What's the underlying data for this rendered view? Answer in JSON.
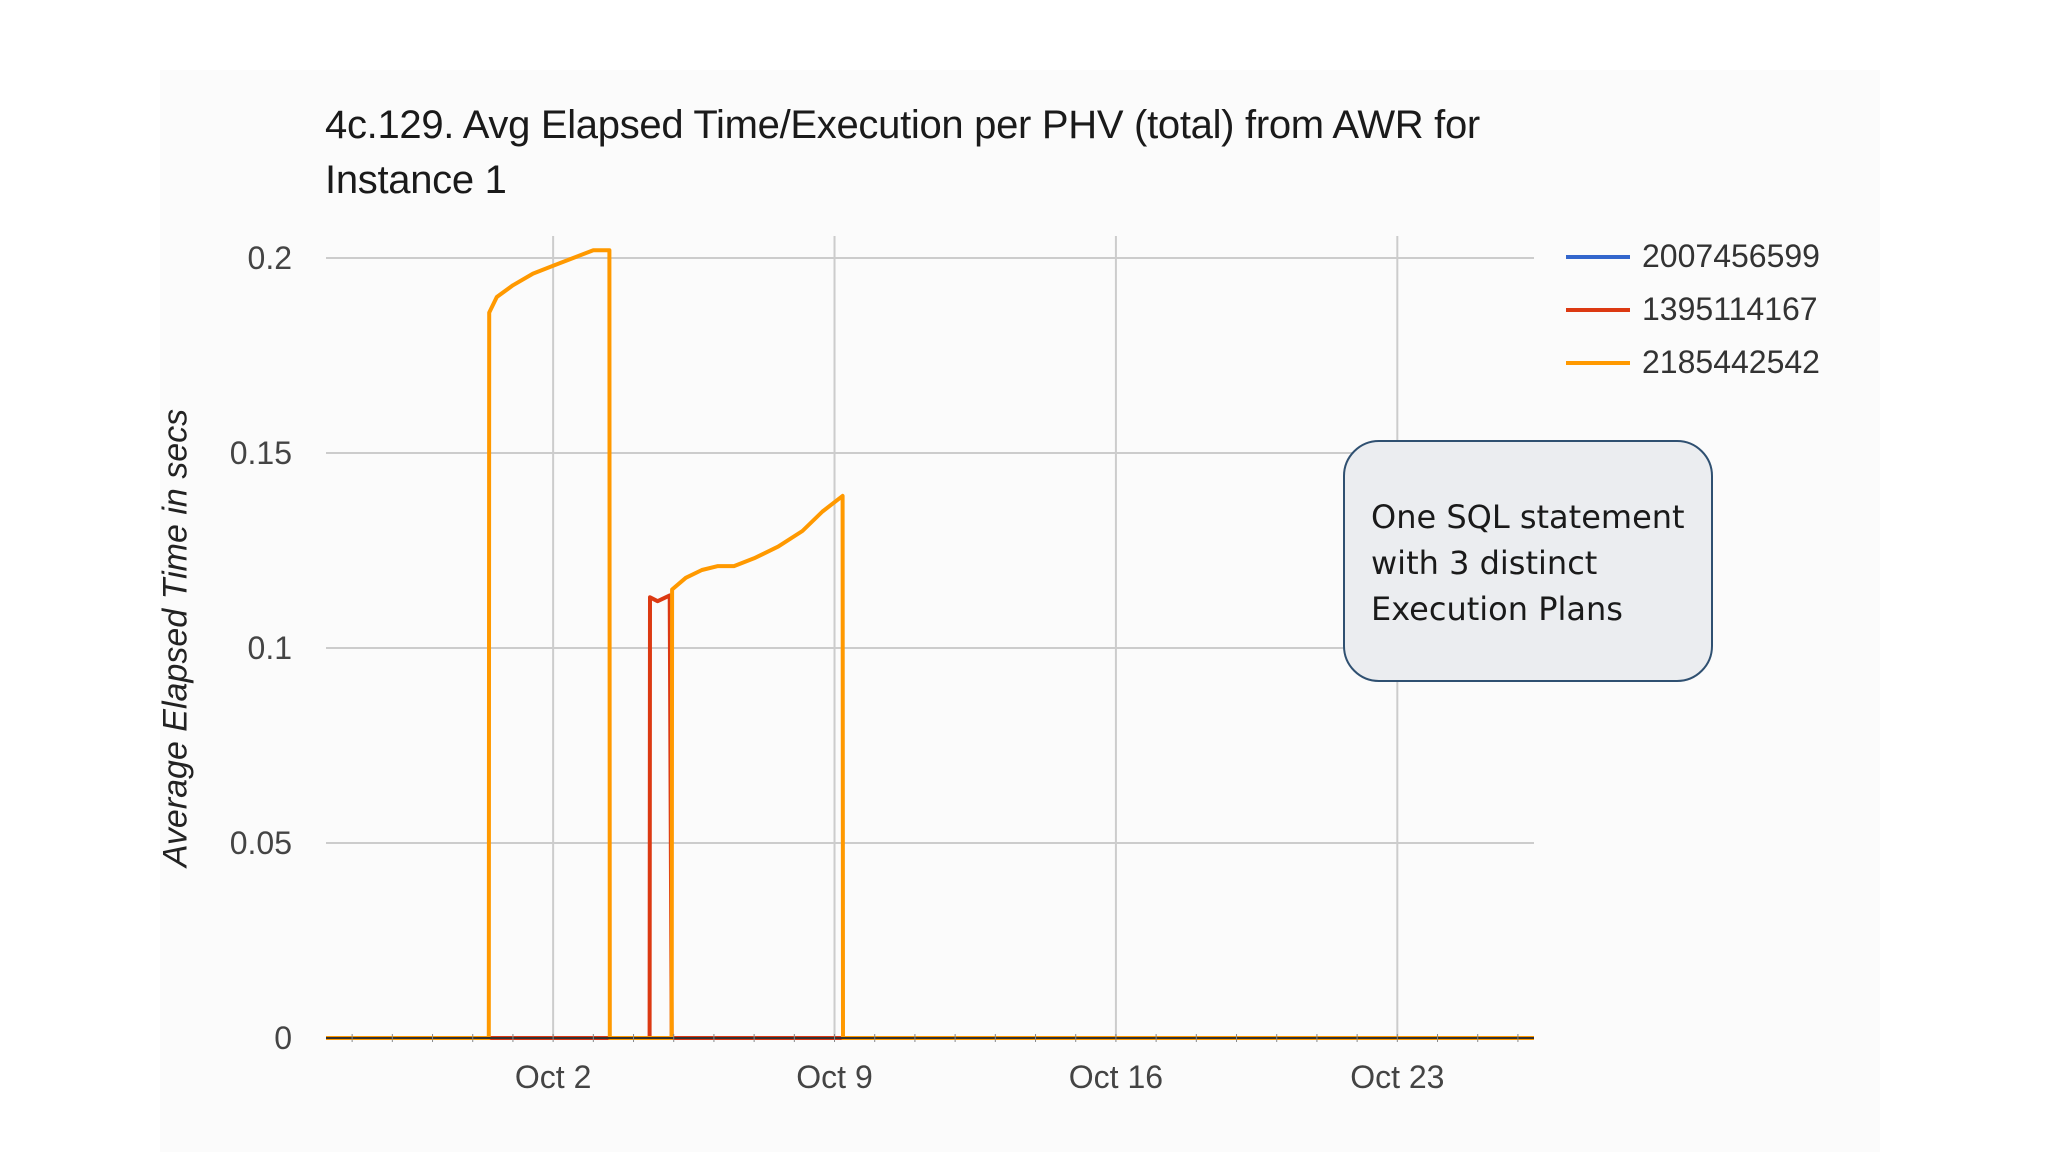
{
  "colors": {
    "page_background": "#ffffff",
    "grid": "#cccccc",
    "axis": "#333333",
    "annotation_border": "#2f5071",
    "annotation_fill": "#ebedf0"
  },
  "annotation": {
    "lines": [
      "One SQL statement",
      "with 3 distinct",
      "Execution Plans"
    ]
  },
  "chart_data": {
    "type": "line",
    "title": "4c.129. Avg Elapsed Time/Execution per PHV (total) from AWR for Instance 1",
    "ylabel": "Average Elapsed Time in secs",
    "xlabel": "",
    "x_unit": "day",
    "xlim": [
      26.35,
      56.4
    ],
    "ylim": [
      0,
      0.2
    ],
    "y_ticks": [
      0,
      0.05,
      0.1,
      0.15,
      0.2
    ],
    "y_tick_labels": [
      "0",
      "0.05",
      "0.1",
      "0.15",
      "0.2"
    ],
    "x_ticks": [
      32,
      39,
      46,
      53
    ],
    "x_tick_labels": [
      "Oct 2",
      "Oct 9",
      "Oct 16",
      "Oct 23"
    ],
    "grid": true,
    "legend_position": "top-right",
    "series": [
      {
        "name": "2007456599",
        "color": "#3366cc",
        "points": [
          [
            26.35,
            0
          ],
          [
            56.4,
            0
          ]
        ]
      },
      {
        "name": "1395114167",
        "color": "#dc3912",
        "points": [
          [
            26.35,
            0
          ],
          [
            34.4,
            0
          ],
          [
            34.41,
            0.113
          ],
          [
            34.6,
            0.112
          ],
          [
            34.9,
            0.1135
          ],
          [
            34.95,
            0
          ],
          [
            56.4,
            0
          ]
        ]
      },
      {
        "name": "2185442542",
        "color": "#ff9900",
        "points": [
          [
            26.35,
            0
          ],
          [
            30.4,
            0
          ],
          [
            30.41,
            0.186
          ],
          [
            30.6,
            0.19
          ],
          [
            31,
            0.193
          ],
          [
            31.5,
            0.196
          ],
          [
            32,
            0.198
          ],
          [
            32.5,
            0.2
          ],
          [
            33,
            0.202
          ],
          [
            33.4,
            0.202
          ],
          [
            33.41,
            0
          ],
          [
            34.95,
            0
          ],
          [
            34.96,
            0.115
          ],
          [
            35.3,
            0.118
          ],
          [
            35.7,
            0.12
          ],
          [
            36.1,
            0.121
          ],
          [
            36.5,
            0.121
          ],
          [
            37,
            0.123
          ],
          [
            37.6,
            0.126
          ],
          [
            38.2,
            0.13
          ],
          [
            38.7,
            0.135
          ],
          [
            39.2,
            0.139
          ],
          [
            39.21,
            0
          ],
          [
            56.4,
            0
          ]
        ]
      }
    ]
  }
}
